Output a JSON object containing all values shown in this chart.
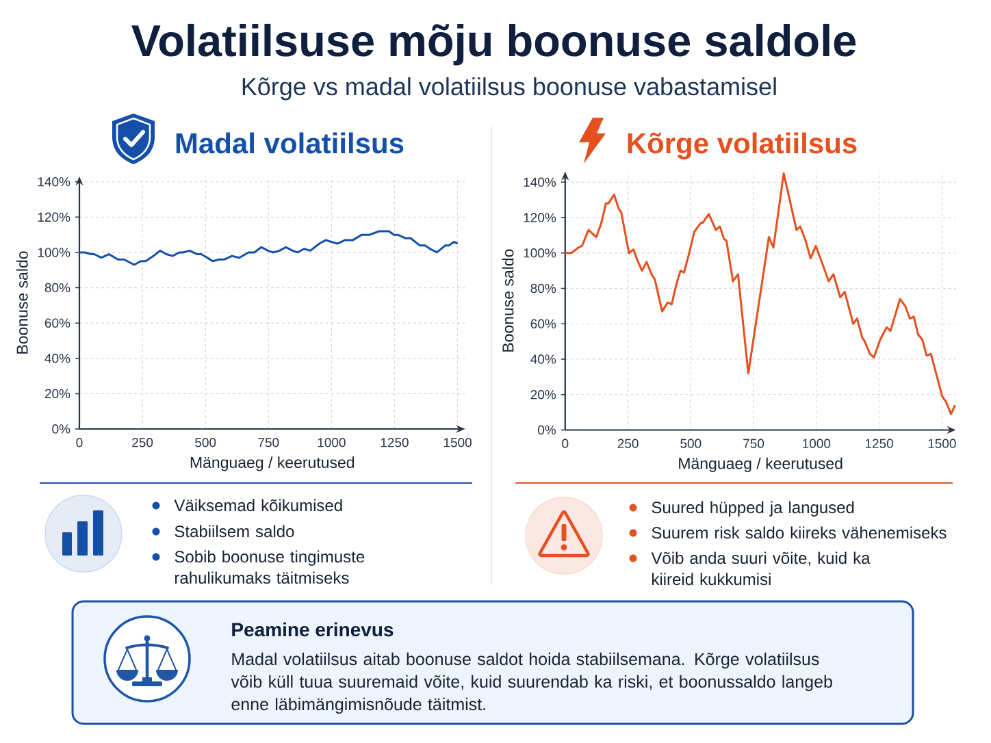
{
  "chart_data": [
    {
      "type": "other",
      "title": "Volatiilsuse mõju boonuse saldole",
      "subtitle": "Kõrge vs madal volatiilsus boonuse vabastamisel"
    },
    {
      "type": "line",
      "title": "Madal volatiilsus",
      "xlabel": "Mänguaeg / keerutused",
      "ylabel": "Boonuse saldo",
      "x": [
        0,
        23,
        47,
        59,
        87,
        117,
        153,
        177,
        217,
        243,
        263,
        294,
        320,
        345,
        370,
        396,
        411,
        437,
        467,
        483,
        508,
        529,
        554,
        574,
        605,
        634,
        671,
        694,
        722,
        748,
        768,
        794,
        819,
        845,
        865,
        891,
        916,
        952,
        978,
        998,
        1024,
        1054,
        1085,
        1120,
        1151,
        1189,
        1207,
        1228,
        1248,
        1263,
        1294,
        1314,
        1350,
        1371,
        1391,
        1418,
        1452,
        1467,
        1485,
        1500
      ],
      "series": [
        {
          "color": "#1450A8",
          "values": [
            100,
            100,
            99,
            99,
            97,
            99,
            96,
            96,
            93,
            95,
            95,
            98,
            101,
            99,
            98,
            100,
            100,
            101,
            99,
            99,
            97,
            95,
            96,
            96,
            98,
            97,
            100,
            100,
            103,
            101,
            100,
            101,
            103,
            101,
            100,
            102,
            101,
            105,
            107,
            106,
            105,
            107,
            107,
            110,
            110,
            112,
            112,
            112,
            110,
            110,
            108,
            108,
            104,
            104,
            102,
            100,
            104,
            104,
            106,
            105
          ]
        }
      ],
      "xlim": [
        0,
        1530
      ],
      "ylim": [
        0,
        143
      ],
      "xticks": [
        0,
        250,
        500,
        750,
        1000,
        1250,
        1500
      ],
      "yticks": [
        {
          "value": 0,
          "label": "0%"
        },
        {
          "value": 20,
          "label": "20%"
        },
        {
          "value": 40,
          "label": "40%"
        },
        {
          "value": 60,
          "label": "60%"
        },
        {
          "value": 80,
          "label": "80%"
        },
        {
          "value": 100,
          "label": "100%"
        },
        {
          "value": 120,
          "label": "120%"
        },
        {
          "value": 140,
          "label": "140%"
        }
      ],
      "grid": true,
      "annotations": [
        "Väiksemad kõikumised",
        "Stabiilsem saldo",
        "Sobib boonuse tingimuste rahulikumaks täitmiseks"
      ]
    },
    {
      "type": "line",
      "title": "Kõrge volatiilsus",
      "xlabel": "Mänguaeg / keerutused",
      "ylabel": "Boonuse saldo",
      "x": [
        0,
        24,
        34,
        52,
        67,
        93,
        124,
        144,
        162,
        172,
        195,
        213,
        223,
        254,
        272,
        287,
        306,
        324,
        344,
        357,
        386,
        408,
        424,
        442,
        459,
        473,
        492,
        514,
        540,
        547,
        572,
        600,
        616,
        632,
        642,
        668,
        688,
        729,
        811,
        829,
        870,
        921,
        936,
        957,
        977,
        998,
        1029,
        1049,
        1068,
        1095,
        1113,
        1147,
        1162,
        1183,
        1193,
        1213,
        1229,
        1254,
        1280,
        1295,
        1333,
        1354,
        1372,
        1388,
        1405,
        1422,
        1439,
        1456,
        1501,
        1516,
        1536,
        1552
      ],
      "series": [
        {
          "color": "#E4501E",
          "values": [
            100,
            100,
            101,
            103,
            104,
            113,
            109,
            117,
            128,
            128,
            133,
            125,
            123,
            100,
            102,
            96,
            90,
            95,
            88,
            85,
            67,
            72,
            71,
            82,
            90,
            89,
            99,
            112,
            117,
            117,
            122,
            113,
            115,
            108,
            107,
            84,
            88,
            32,
            109,
            103,
            145,
            113,
            115,
            107,
            97,
            104,
            92,
            84,
            88,
            75,
            78,
            60,
            63,
            52,
            50,
            43,
            41,
            51,
            58,
            56,
            74,
            70,
            63,
            64,
            54,
            51,
            42,
            43,
            19,
            16,
            9,
            14
          ]
        }
      ],
      "xlim": [
        0,
        1555
      ],
      "ylim": [
        0,
        146
      ],
      "xticks": [
        0,
        250,
        500,
        750,
        1000,
        1250,
        1500
      ],
      "yticks": [
        {
          "value": 0,
          "label": "0%"
        },
        {
          "value": 20,
          "label": "20%"
        },
        {
          "value": 40,
          "label": "40%"
        },
        {
          "value": 60,
          "label": "60%"
        },
        {
          "value": 80,
          "label": "80%"
        },
        {
          "value": 100,
          "label": "100%"
        },
        {
          "value": 120,
          "label": "120%"
        },
        {
          "value": 140,
          "label": "140%"
        }
      ],
      "grid": true,
      "annotations": [
        "Suured hüpped ja langused",
        "Suurem risk saldo kiireks vähenemiseks",
        "Võib anda suuri võite, kuid ka kiireid kukkumisi"
      ]
    },
    {
      "type": "other",
      "title": "Peamine erinevus",
      "annotations": [
        "Madal volatiilsus aitab boonuse saldot hoida stabiilsemana. Kõrge volatiilsus võib küll tuua suuremaid võite, kuid suurendab ka riski, et boonussaldo langeb enne läbimängimisnõude täitmist."
      ]
    }
  ]
}
